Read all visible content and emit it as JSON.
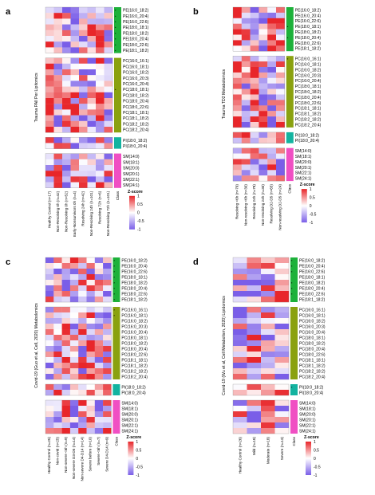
{
  "legend": {
    "title": "Z-score",
    "ticks": [
      "1",
      "0.5",
      "0",
      "-0.5",
      "-1"
    ]
  },
  "class_label": "Class",
  "colors": {
    "high": "#e8262a",
    "mid": "#ffffff",
    "low": "#7a5ee8",
    "PE": "#1db13a",
    "PC": "#8aa10f",
    "PI": "#13b3a0",
    "SM": "#f04fc3"
  },
  "groups": {
    "PE": [
      "PE(16:0_18:2)",
      "PE(16:0_20:4)",
      "PE(16:0_22:6)",
      "PE(18:0_18:1)",
      "PE(18:0_18:2)",
      "PE(18:0_20:4)",
      "PE(18:0_22:6)",
      "PE(18:1_18:2)"
    ],
    "PC": [
      "PC(16:0_16:1)",
      "PC(16:0_18:1)",
      "PC(16:0_18:2)",
      "PC(16:0_20:3)",
      "PC(16:0_20:4)",
      "PC(18:0_18:1)",
      "PC(18:0_18:2)",
      "PC(18:0_20:4)",
      "PC(18:0_22:6)",
      "PC(18:1_18:1)",
      "PC(18:1_18:2)",
      "PC(18:2_18:2)",
      "PC(18:2_20:4)"
    ],
    "PI": [
      "PI(18:0_18:2)",
      "PI(18:0_20:4)"
    ],
    "SM": [
      "SM(14:0)",
      "SM(18:1)",
      "SM(20:0)",
      "SM(20:1)",
      "SM(22:1)",
      "SM(24:1)"
    ]
  },
  "panels": [
    {
      "letter": "a",
      "ylabel": "Trauma PAll Per Lipitomics",
      "columns": [
        "Healthy Control (n=17)",
        "Non-Resolving 0h (n=42)",
        "Non-Resolving 0h (n=52)",
        "Early-Nonsurvivors 0h (n=4)",
        "Resolving 24h (n=42)",
        "Non-Resolving 24h (n=101)",
        "Resolving 72h (n=6)",
        "Non-Resolving 72h (n=101)"
      ],
      "stars": {
        "PE": [
          0,
          1,
          2,
          3,
          4,
          5,
          6,
          7
        ],
        "PC": [
          5
        ],
        "PI": [],
        "SM": []
      }
    },
    {
      "letter": "b",
      "ylabel": "Trauma TD2 Metabolomics",
      "columns": [
        "Resolving <6h (n=79)",
        "Non-resolving <6h (n=30)",
        "Resolving 24h (n=78)",
        "Non-resolving 24h (n=30)",
        "Resolving D2-D5 (n=65)",
        "Non-resolving D2-D5 (n=24)"
      ],
      "stars": {
        "PE": [
          3,
          5
        ],
        "PC": [
          0
        ],
        "PI": [],
        "SM": []
      }
    },
    {
      "letter": "c",
      "ylabel": "Covid-19 (Guo et al, Cell, 2020) Metabolomics",
      "columns": [
        "Healthy Control (n=25)",
        "Non-covid (n=25)",
        "Non-severe <6h (n=9)",
        "Non-severe D3-D5 (n=14)",
        "Non-severe D4-D14 (n=14)",
        "Severe before (n=10)",
        "Severe <6h (n=7)",
        "Severe D4-D14 (n=9)"
      ],
      "stars": {
        "PE": [
          0,
          1,
          2,
          3,
          4,
          5,
          6,
          7
        ],
        "PC": [
          0,
          1
        ],
        "PI": [],
        "SM": []
      }
    },
    {
      "letter": "d",
      "ylabel": "Covid-19 (Wu et al, Cell Metabolism, 2020) Lipidomics",
      "columns": [
        "Healthy Control (n=26)",
        "Mild (n=18)",
        "Moderate (n=18)",
        "Severe (n=13)"
      ],
      "stars": {
        "PE": [
          0,
          1,
          2,
          4,
          5,
          6
        ],
        "PC": [],
        "PI": [
          0
        ],
        "SM": []
      }
    }
  ]
}
